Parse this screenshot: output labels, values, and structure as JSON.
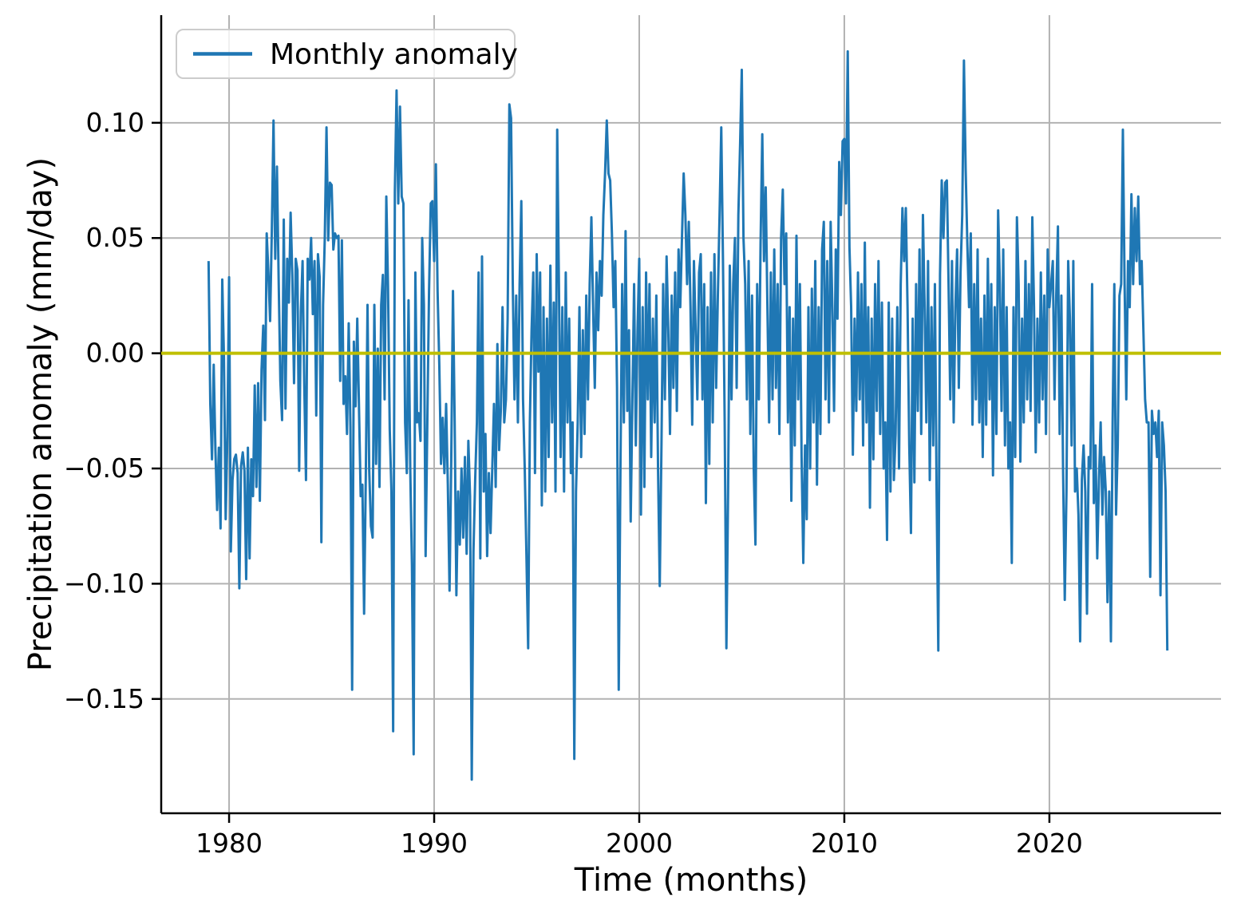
{
  "figure": {
    "legend": {
      "label": "Monthly anomaly",
      "position": "upper left"
    },
    "axes": {
      "xlabel": "Time (months)",
      "ylabel": "Precipitation anomaly (mm/day)",
      "xticks": [
        {
          "value": 1980,
          "label": "1980"
        },
        {
          "value": 1990,
          "label": "1990"
        },
        {
          "value": 2000,
          "label": "2000"
        },
        {
          "value": 2010,
          "label": "2010"
        },
        {
          "value": 2020,
          "label": "2020"
        }
      ],
      "yticks": [
        {
          "value": 0.1,
          "label": "0.10"
        },
        {
          "value": 0.05,
          "label": "0.05"
        },
        {
          "value": 0.0,
          "label": "0.00"
        },
        {
          "value": -0.05,
          "label": "−0.05"
        },
        {
          "value": -0.1,
          "label": "−0.10"
        },
        {
          "value": -0.15,
          "label": "−0.15"
        }
      ]
    },
    "colors": {
      "line": "#1f77b4",
      "zero_line": "#bfbf00",
      "grid": "#b2b2b2",
      "spine": "#000000",
      "legend_border": "#cccccc",
      "legend_fill": "rgba(255,255,255,0.8)",
      "background": "#ffffff"
    }
  },
  "chart_data": {
    "type": "line",
    "title": "",
    "xlabel": "Time (months)",
    "ylabel": "Precipitation anomaly (mm/day)",
    "x_unit": "decimal year, monthly resolution",
    "x_start": 1979.0,
    "x_step": 0.0833333,
    "x_end": 2025.75,
    "xlim": [
      1976.69,
      2028.37
    ],
    "ylim": [
      -0.1996,
      0.1467
    ],
    "grid": true,
    "legend_position": "upper left",
    "reference_lines": [
      {
        "name": "zero-line",
        "y": 0.0,
        "color": "#bfbf00"
      }
    ],
    "series": [
      {
        "name": "Monthly anomaly",
        "color": "#1f77b4",
        "start_year": 1979,
        "values_by_year": [
          [
            0.04,
            -0.022,
            -0.046,
            -0.005,
            -0.042,
            -0.068,
            -0.041,
            -0.076,
            0.032,
            -0.002,
            -0.072,
            -0.036
          ],
          [
            0.033,
            -0.086,
            -0.055,
            -0.046,
            -0.044,
            -0.052,
            -0.102,
            -0.049,
            -0.043,
            -0.051,
            -0.098,
            -0.041
          ],
          [
            -0.089,
            -0.046,
            -0.062,
            -0.014,
            -0.058,
            -0.013,
            -0.064,
            -0.007,
            0.012,
            -0.029,
            0.052,
            0.035
          ],
          [
            0.014,
            0.053,
            0.101,
            0.041,
            0.081,
            0.032,
            -0.012,
            -0.029,
            0.058,
            -0.024,
            0.041,
            0.022
          ],
          [
            0.061,
            0.034,
            -0.013,
            0.041,
            0.036,
            -0.051,
            0.018,
            0.04,
            -0.014,
            -0.055,
            0.041,
            0.032
          ],
          [
            0.05,
            0.017,
            0.04,
            -0.027,
            0.043,
            0.033,
            -0.082,
            0.021,
            0.05,
            0.098,
            0.049,
            0.074
          ],
          [
            0.073,
            0.045,
            0.052,
            0.05,
            0.051,
            -0.012,
            0.049,
            -0.022,
            -0.01,
            -0.035,
            0.013,
            -0.032
          ],
          [
            -0.146,
            0.005,
            -0.023,
            0.015,
            -0.023,
            -0.062,
            -0.057,
            -0.113,
            -0.053,
            0.021,
            -0.051,
            -0.075
          ],
          [
            -0.08,
            0.021,
            -0.048,
            0.002,
            -0.058,
            0.021,
            0.034,
            -0.02,
            0.068,
            0.029,
            -0.033,
            -0.06
          ],
          [
            -0.164,
            0.07,
            0.114,
            0.065,
            0.107,
            0.068,
            0.065,
            -0.03,
            -0.052,
            0.023,
            -0.05,
            -0.092
          ],
          [
            -0.174,
            0.035,
            -0.03,
            -0.026,
            -0.038,
            0.05,
            0.021,
            -0.088,
            -0.03,
            0.027,
            0.065,
            0.066
          ],
          [
            0.04,
            0.082,
            0.027,
            -0.005,
            -0.048,
            -0.028,
            -0.052,
            -0.022,
            -0.057,
            -0.103,
            -0.046,
            0.027
          ],
          [
            -0.03,
            -0.105,
            -0.06,
            -0.083,
            -0.05,
            -0.08,
            -0.045,
            -0.087,
            -0.038,
            -0.062,
            -0.185,
            -0.086
          ],
          [
            -0.055,
            -0.03,
            0.035,
            -0.089,
            0.042,
            -0.06,
            -0.035,
            -0.088,
            -0.052,
            -0.078,
            -0.05,
            -0.022
          ],
          [
            -0.058,
            0.004,
            -0.042,
            -0.025,
            0.02,
            -0.03,
            -0.02,
            0.015,
            0.108,
            0.102,
            0.03,
            -0.02
          ],
          [
            0.025,
            -0.03,
            0.03,
            0.066,
            -0.02,
            -0.05,
            -0.088,
            -0.128,
            -0.03,
            0.01,
            0.035,
            -0.052
          ],
          [
            0.043,
            -0.008,
            0.035,
            -0.066,
            0.02,
            -0.06,
            0.015,
            -0.045,
            0.038,
            -0.03,
            0.022,
            -0.06
          ],
          [
            0.097,
            0.03,
            -0.045,
            0.02,
            -0.06,
            0.035,
            -0.03,
            0.015,
            -0.052,
            -0.03,
            -0.176,
            -0.06
          ],
          [
            -0.03,
            0.02,
            -0.045,
            0.01,
            -0.035,
            0.025,
            -0.02,
            0.03,
            0.059,
            0.02,
            -0.015,
            0.035
          ],
          [
            0.01,
            0.04,
            0.025,
            0.06,
            0.078,
            0.101,
            0.078,
            0.075,
            0.052,
            0.02,
            0.04,
            -0.015
          ],
          [
            -0.146,
            -0.05,
            0.03,
            -0.03,
            0.053,
            -0.025,
            0.01,
            -0.073,
            -0.02,
            0.03,
            -0.04,
            0.01
          ],
          [
            0.041,
            -0.07,
            0.02,
            -0.058,
            0.035,
            -0.02,
            0.03,
            -0.045,
            0.015,
            -0.03,
            0.025,
            -0.05
          ],
          [
            -0.101,
            -0.04,
            0.03,
            -0.02,
            0.042,
            0.01,
            -0.035,
            0.025,
            -0.015,
            0.035,
            -0.025,
            0.045
          ],
          [
            0.02,
            0.05,
            0.078,
            0.06,
            0.03,
            0.057,
            0.02,
            -0.031,
            0.04,
            0.01,
            -0.02,
            0.035
          ],
          [
            0.043,
            -0.02,
            0.03,
            -0.065,
            0.02,
            -0.048,
            0.035,
            -0.03,
            0.043,
            -0.015,
            0.025,
            0.06
          ],
          [
            0.098,
            0.04,
            -0.03,
            -0.128,
            -0.06,
            0.038,
            -0.02,
            0.03,
            0.05,
            -0.015,
            0.06,
            0.09
          ],
          [
            0.123,
            0.05,
            0.03,
            -0.02,
            0.04,
            -0.035,
            0.025,
            -0.05,
            -0.083,
            0.03,
            -0.02,
            0.048
          ],
          [
            0.095,
            0.04,
            0.072,
            0.02,
            -0.03,
            0.035,
            -0.02,
            0.045,
            -0.015,
            0.03,
            -0.035,
            0.05
          ],
          [
            0.071,
            0.03,
            0.052,
            -0.03,
            0.02,
            -0.064,
            0.015,
            -0.04,
            0.051,
            -0.02,
            0.03,
            -0.045
          ],
          [
            -0.091,
            -0.04,
            -0.072,
            0.02,
            -0.05,
            0.028,
            -0.03,
            0.04,
            -0.057,
            0.02,
            -0.035,
            0.045
          ],
          [
            0.057,
            -0.02,
            0.04,
            -0.03,
            0.057,
            0.02,
            -0.025,
            0.045,
            0.015,
            0.083,
            0.06,
            0.092
          ],
          [
            0.093,
            0.065,
            0.131,
            0.046,
            0.02,
            -0.044,
            0.015,
            -0.025,
            0.035,
            -0.02,
            0.03,
            -0.04
          ],
          [
            0.048,
            -0.03,
            0.02,
            -0.067,
            0.015,
            -0.046,
            0.03,
            -0.025,
            0.04,
            -0.035,
            0.022,
            -0.05
          ],
          [
            -0.03,
            -0.081,
            0.022,
            -0.06,
            0.015,
            -0.055,
            -0.035,
            0.02,
            -0.05,
            0.03,
            0.063,
            0.04
          ],
          [
            0.063,
            0.02,
            -0.04,
            -0.078,
            0.015,
            -0.056,
            0.03,
            -0.025,
            0.045,
            -0.035,
            0.06,
            0.02
          ],
          [
            -0.03,
            0.04,
            -0.055,
            0.02,
            -0.04,
            0.03,
            -0.06,
            -0.129,
            0.034,
            0.075,
            0.05,
            0.074
          ],
          [
            0.075,
            0.03,
            -0.02,
            0.04,
            -0.03,
            0.02,
            0.045,
            -0.015,
            0.035,
            0.06,
            0.127,
            0.08
          ],
          [
            0.047,
            0.02,
            0.052,
            -0.031,
            0.03,
            -0.02,
            0.045,
            -0.03,
            0.015,
            -0.045,
            0.025,
            -0.031
          ],
          [
            0.041,
            -0.02,
            0.03,
            -0.053,
            0.02,
            -0.035,
            0.062,
            0.03,
            -0.025,
            0.045,
            -0.04,
            0.02
          ],
          [
            -0.05,
            -0.03,
            -0.091,
            0.02,
            -0.045,
            0.059,
            0.03,
            -0.047,
            0.015,
            -0.03,
            0.04,
            -0.02
          ],
          [
            0.03,
            -0.025,
            0.059,
            0.02,
            -0.043,
            0.015,
            -0.03,
            0.035,
            -0.02,
            0.025,
            -0.035,
            0.045
          ],
          [
            0.02,
            0.03,
            0.04,
            -0.02,
            0.025,
            0.055,
            -0.035,
            0.025,
            -0.05,
            -0.107,
            -0.06,
            0.04
          ],
          [
            0.015,
            -0.04,
            0.04,
            -0.06,
            -0.05,
            -0.07,
            -0.125,
            -0.055,
            -0.04,
            -0.06,
            -0.113,
            -0.045
          ],
          [
            -0.05,
            0.03,
            -0.065,
            -0.04,
            -0.089,
            -0.055,
            -0.03,
            -0.07,
            -0.045,
            -0.06,
            -0.108,
            -0.06
          ],
          [
            -0.125,
            -0.03,
            0.03,
            -0.07,
            -0.04,
            0.025,
            0.03,
            0.097,
            0.03,
            -0.02,
            0.04,
            0.02
          ],
          [
            0.069,
            0.03,
            0.063,
            0.04,
            0.068,
            0.03,
            0.04,
            0.01,
            -0.02,
            -0.03,
            -0.03,
            -0.097
          ],
          [
            -0.025,
            -0.035,
            -0.03,
            -0.045,
            -0.025,
            -0.105,
            -0.03,
            -0.04,
            -0.06,
            -0.129
          ]
        ]
      }
    ]
  }
}
